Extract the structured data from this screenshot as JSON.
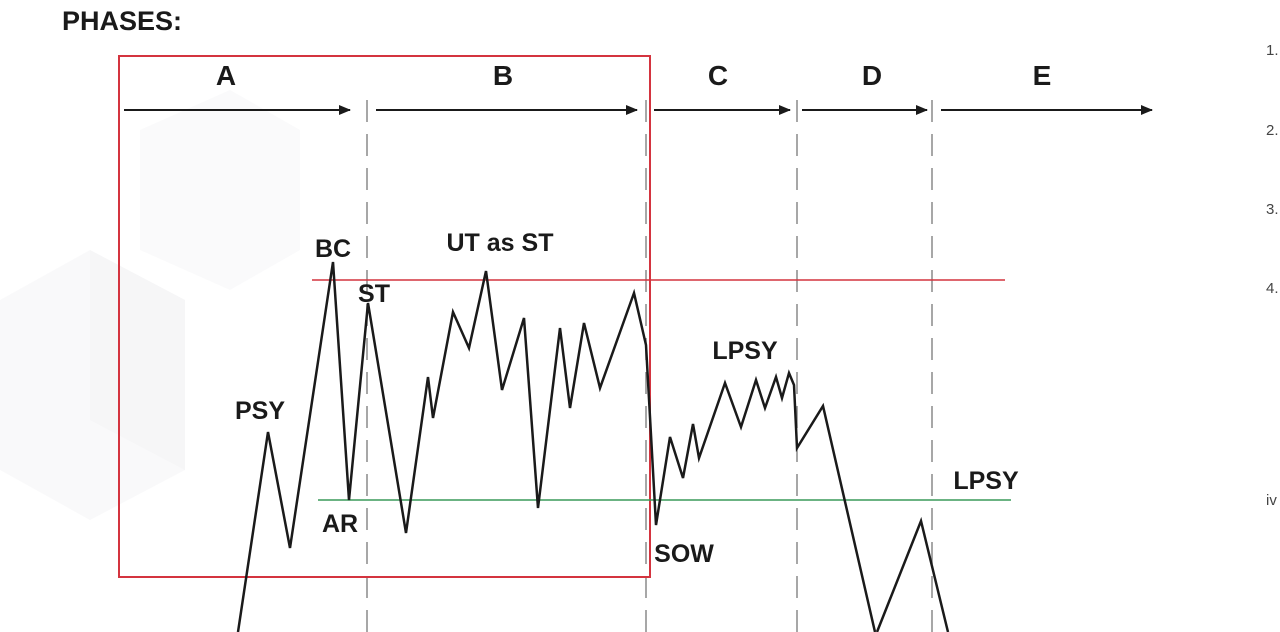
{
  "title": "PHASES:",
  "phases": [
    "A",
    "B",
    "C",
    "D",
    "E"
  ],
  "events": {
    "psy": "PSY",
    "bc": "BC",
    "ar": "AR",
    "st": "ST",
    "ut_as_st": "UT as ST",
    "lpsy_1": "LPSY",
    "sow": "SOW",
    "lpsy_2": "LPSY"
  },
  "side_list": [
    "1.",
    "2.",
    "3.",
    "4.",
    "iv"
  ],
  "colors": {
    "price_line": "#1a1a1a",
    "resistance_line": "#d4343f",
    "support_line": "#3a9a5a",
    "phase_box": "#d4343f",
    "separator": "#8a8a8a",
    "text": "#1a1a1a"
  }
}
